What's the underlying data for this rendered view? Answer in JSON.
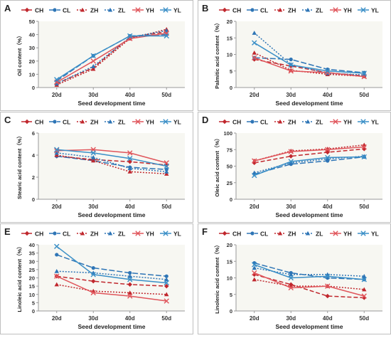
{
  "figure": {
    "background": "#ffffff",
    "plot_background": "#f7f7f2",
    "frame": "#bfbfbf"
  },
  "legend_entries": [
    {
      "name": "CH",
      "color": "#c0272d",
      "dash": "6,3",
      "marker": "diamond"
    },
    {
      "name": "CL",
      "color": "#2e75b6",
      "dash": "8,3",
      "marker": "circle"
    },
    {
      "name": "ZH",
      "color": "#c0272d",
      "dash": "2,2",
      "marker": "triangle"
    },
    {
      "name": "ZL",
      "color": "#2e75b6",
      "dash": "2,2",
      "marker": "triangle"
    },
    {
      "name": "YH",
      "color": "#e0555b",
      "dash": "",
      "marker": "x"
    },
    {
      "name": "YL",
      "color": "#3a8fc7",
      "dash": "",
      "marker": "x"
    }
  ],
  "chart_data": [
    {
      "panel": "A",
      "type": "line",
      "xlabel": "Seed development time",
      "ylabel": "Oil content（%）",
      "categories": [
        "20d",
        "30d",
        "40d",
        "50d"
      ],
      "ylim": [
        0,
        50
      ],
      "yticks": [
        0,
        10,
        20,
        30,
        40,
        50
      ],
      "series": [
        {
          "name": "CH",
          "values": [
            3,
            15,
            38,
            42
          ]
        },
        {
          "name": "CL",
          "values": [
            5,
            24,
            39,
            40
          ]
        },
        {
          "name": "ZH",
          "values": [
            2,
            14,
            37,
            44
          ]
        },
        {
          "name": "ZL",
          "values": [
            3,
            16,
            38,
            43
          ]
        },
        {
          "name": "YH",
          "values": [
            4,
            20,
            37,
            41
          ]
        },
        {
          "name": "YL",
          "values": [
            6,
            24,
            39,
            39
          ]
        }
      ]
    },
    {
      "panel": "B",
      "type": "line",
      "xlabel": "Seed development time",
      "ylabel": "Palmitic acid content（%）",
      "categories": [
        "20d",
        "30d",
        "40d",
        "50d"
      ],
      "ylim": [
        0,
        20
      ],
      "yticks": [
        0,
        5,
        10,
        15,
        20
      ],
      "series": [
        {
          "name": "CH",
          "values": [
            8.5,
            6.5,
            4.5,
            3.5
          ]
        },
        {
          "name": "CL",
          "values": [
            9,
            8.5,
            5.5,
            4.5
          ]
        },
        {
          "name": "ZH",
          "values": [
            10.5,
            5.2,
            4,
            3.4
          ]
        },
        {
          "name": "ZL",
          "values": [
            16.5,
            7,
            4.3,
            3.8
          ]
        },
        {
          "name": "YH",
          "values": [
            9,
            5,
            4.5,
            3.3
          ]
        },
        {
          "name": "YL",
          "values": [
            13.5,
            6.8,
            5,
            4.3
          ]
        }
      ]
    },
    {
      "panel": "C",
      "type": "line",
      "xlabel": "Seed development time",
      "ylabel": "Stearic acid content（%）",
      "categories": [
        "20d",
        "30d",
        "40d",
        "50d"
      ],
      "ylim": [
        0,
        6
      ],
      "yticks": [
        0,
        2,
        4,
        6
      ],
      "series": [
        {
          "name": "CH",
          "values": [
            3.9,
            3.6,
            3.4,
            3.1
          ]
        },
        {
          "name": "CL",
          "values": [
            3.9,
            3.5,
            2.9,
            2.7
          ]
        },
        {
          "name": "ZH",
          "values": [
            4.0,
            3.5,
            2.5,
            2.3
          ]
        },
        {
          "name": "ZL",
          "values": [
            4.2,
            3.8,
            2.8,
            2.5
          ]
        },
        {
          "name": "YH",
          "values": [
            4.4,
            4.5,
            4.2,
            3.3
          ]
        },
        {
          "name": "YL",
          "values": [
            4.5,
            4.2,
            3.7,
            3.0
          ]
        }
      ]
    },
    {
      "panel": "D",
      "type": "line",
      "xlabel": "Seed development time",
      "ylabel": "Oleic acid content（%）",
      "categories": [
        "20d",
        "30d",
        "40d",
        "50d"
      ],
      "ylim": [
        0,
        100
      ],
      "yticks": [
        0,
        25,
        50,
        75,
        100
      ],
      "series": [
        {
          "name": "CH",
          "values": [
            55,
            65,
            71,
            76
          ]
        },
        {
          "name": "CL",
          "values": [
            38,
            53,
            58,
            64
          ]
        },
        {
          "name": "ZH",
          "values": [
            58,
            73,
            76,
            82
          ]
        },
        {
          "name": "ZL",
          "values": [
            40,
            55,
            61,
            65
          ]
        },
        {
          "name": "YH",
          "values": [
            58,
            72,
            75,
            79
          ]
        },
        {
          "name": "YL",
          "values": [
            36,
            57,
            63,
            64
          ]
        }
      ]
    },
    {
      "panel": "E",
      "type": "line",
      "xlabel": "Seed development time",
      "ylabel": "Linoleic acid content（%）",
      "categories": [
        "20d",
        "30d",
        "40d",
        "50d"
      ],
      "ylim": [
        0,
        40
      ],
      "yticks": [
        0,
        5,
        10,
        15,
        20,
        25,
        30,
        35,
        40
      ],
      "series": [
        {
          "name": "CH",
          "values": [
            21,
            18,
            16,
            15
          ]
        },
        {
          "name": "CL",
          "values": [
            34,
            26,
            23,
            21
          ]
        },
        {
          "name": "ZH",
          "values": [
            16,
            12,
            11,
            10
          ]
        },
        {
          "name": "ZL",
          "values": [
            24,
            23,
            21,
            19
          ]
        },
        {
          "name": "YH",
          "values": [
            21,
            11,
            9,
            6
          ]
        },
        {
          "name": "YL",
          "values": [
            39,
            22,
            19,
            17
          ]
        }
      ]
    },
    {
      "panel": "F",
      "type": "line",
      "xlabel": "Seed development time",
      "ylabel": "Linolenic acid content（%）",
      "categories": [
        "20d",
        "30d",
        "40d",
        "50d"
      ],
      "ylim": [
        0,
        20
      ],
      "yticks": [
        0,
        5,
        10,
        15,
        20
      ],
      "series": [
        {
          "name": "CH",
          "values": [
            11,
            8,
            4.5,
            4
          ]
        },
        {
          "name": "CL",
          "values": [
            14.5,
            11.5,
            10,
            9.5
          ]
        },
        {
          "name": "ZH",
          "values": [
            9.5,
            7.5,
            7.5,
            6.5
          ]
        },
        {
          "name": "ZL",
          "values": [
            13,
            11,
            11,
            10.5
          ]
        },
        {
          "name": "YH",
          "values": [
            11.5,
            7,
            7.5,
            4.5
          ]
        },
        {
          "name": "YL",
          "values": [
            14,
            10,
            10.5,
            9.5
          ]
        }
      ]
    }
  ]
}
